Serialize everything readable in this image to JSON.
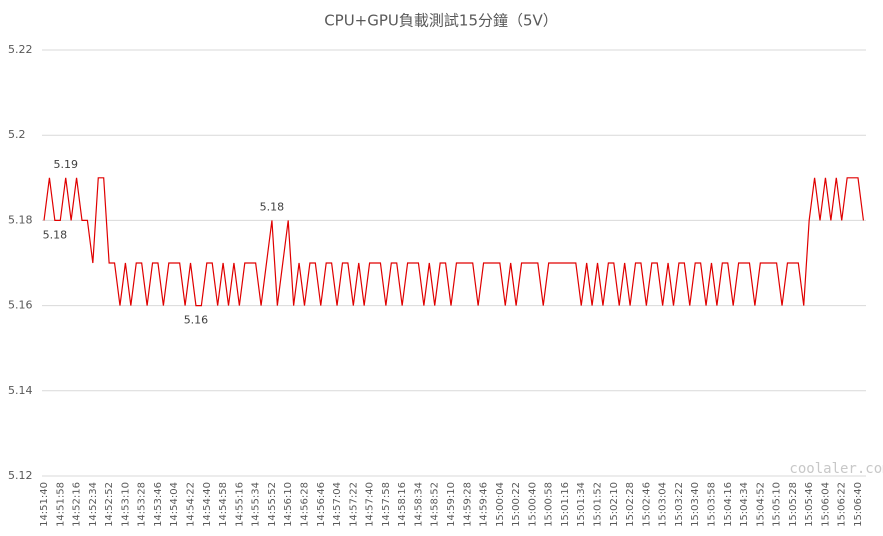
{
  "chart_data": {
    "type": "line",
    "title": "CPU+GPU負載測試15分鐘（5V）",
    "watermark": "coolaler.com",
    "color": "#e00000",
    "grid": true,
    "ylim": [
      5.12,
      5.22
    ],
    "yticks": [
      5.12,
      5.14,
      5.16,
      5.18,
      5.2,
      5.22
    ],
    "categories": [
      "14:51:40",
      null,
      null,
      "14:51:58",
      null,
      null,
      "14:52:16",
      null,
      null,
      "14:52:34",
      null,
      null,
      "14:52:52",
      null,
      null,
      "14:53:10",
      null,
      null,
      "14:53:28",
      null,
      null,
      "14:53:46",
      null,
      null,
      "14:54:04",
      null,
      null,
      "14:54:22",
      null,
      null,
      "14:54:40",
      null,
      null,
      "14:54:58",
      null,
      null,
      "14:55:16",
      null,
      null,
      "14:55:34",
      null,
      null,
      "14:55:52",
      null,
      null,
      "14:56:10",
      null,
      null,
      "14:56:28",
      null,
      null,
      "14:56:46",
      null,
      null,
      "14:57:04",
      null,
      null,
      "14:57:22",
      null,
      null,
      "14:57:40",
      null,
      null,
      "14:57:58",
      null,
      null,
      "14:58:16",
      null,
      null,
      "14:58:34",
      null,
      null,
      "14:58:52",
      null,
      null,
      "14:59:10",
      null,
      null,
      "14:59:28",
      null,
      null,
      "14:59:46",
      null,
      null,
      "15:00:04",
      null,
      null,
      "15:00:22",
      null,
      null,
      "15:00:40",
      null,
      null,
      "15:00:58",
      null,
      null,
      "15:01:16",
      null,
      null,
      "15:01:34",
      null,
      null,
      "15:01:52",
      null,
      null,
      "15:02:10",
      null,
      null,
      "15:02:28",
      null,
      null,
      "15:02:46",
      null,
      null,
      "15:03:04",
      null,
      null,
      "15:03:22",
      null,
      null,
      "15:03:40",
      null,
      null,
      "15:03:58",
      null,
      null,
      "15:04:16",
      null,
      null,
      "15:04:34",
      null,
      null,
      "15:04:52",
      null,
      null,
      "15:05:10",
      null,
      null,
      "15:05:28",
      null,
      null,
      "15:05:46",
      null,
      null,
      "15:06:04",
      null,
      null,
      "15:06:22",
      null,
      null,
      "15:06:40",
      null
    ],
    "values": [
      5.18,
      5.19,
      5.18,
      5.18,
      5.19,
      5.18,
      5.19,
      5.18,
      5.18,
      5.17,
      5.19,
      5.19,
      5.17,
      5.17,
      5.16,
      5.17,
      5.16,
      5.17,
      5.17,
      5.16,
      5.17,
      5.17,
      5.16,
      5.17,
      5.17,
      5.17,
      5.16,
      5.17,
      5.16,
      5.16,
      5.17,
      5.17,
      5.16,
      5.17,
      5.16,
      5.17,
      5.16,
      5.17,
      5.17,
      5.17,
      5.16,
      5.17,
      5.18,
      5.16,
      5.17,
      5.18,
      5.16,
      5.17,
      5.16,
      5.17,
      5.17,
      5.16,
      5.17,
      5.17,
      5.16,
      5.17,
      5.17,
      5.16,
      5.17,
      5.16,
      5.17,
      5.17,
      5.17,
      5.16,
      5.17,
      5.17,
      5.16,
      5.17,
      5.17,
      5.17,
      5.16,
      5.17,
      5.16,
      5.17,
      5.17,
      5.16,
      5.17,
      5.17,
      5.17,
      5.17,
      5.16,
      5.17,
      5.17,
      5.17,
      5.17,
      5.16,
      5.17,
      5.16,
      5.17,
      5.17,
      5.17,
      5.17,
      5.16,
      5.17,
      5.17,
      5.17,
      5.17,
      5.17,
      5.17,
      5.16,
      5.17,
      5.16,
      5.17,
      5.16,
      5.17,
      5.17,
      5.16,
      5.17,
      5.16,
      5.17,
      5.17,
      5.16,
      5.17,
      5.17,
      5.16,
      5.17,
      5.16,
      5.17,
      5.17,
      5.16,
      5.17,
      5.17,
      5.16,
      5.17,
      5.16,
      5.17,
      5.17,
      5.16,
      5.17,
      5.17,
      5.17,
      5.16,
      5.17,
      5.17,
      5.17,
      5.17,
      5.16,
      5.17,
      5.17,
      5.17,
      5.16,
      5.18,
      5.19,
      5.18,
      5.19,
      5.18,
      5.19,
      5.18,
      5.19,
      5.19,
      5.19,
      5.18
    ],
    "value_labels": [
      null,
      null,
      "5.18",
      null,
      "5.19",
      null,
      null,
      null,
      null,
      null,
      null,
      null,
      null,
      null,
      null,
      null,
      null,
      null,
      null,
      null,
      null,
      null,
      null,
      null,
      null,
      null,
      null,
      null,
      "5.16",
      null,
      null,
      null,
      null,
      null,
      null,
      null,
      null,
      null,
      null,
      null,
      null,
      null,
      "5.18",
      null,
      null,
      null,
      null,
      null,
      null,
      null,
      null,
      null,
      null,
      null,
      null,
      null,
      null,
      null,
      null,
      null,
      null,
      null,
      null,
      null,
      null,
      null,
      null,
      null,
      null,
      null,
      null,
      null,
      null,
      null,
      null,
      null,
      null,
      null,
      null,
      null,
      null,
      null,
      null,
      null,
      null,
      null,
      null,
      null,
      null,
      null,
      null,
      null,
      null,
      null,
      null,
      null,
      null,
      null,
      null,
      null,
      null,
      null,
      null,
      null,
      null,
      null,
      null,
      null,
      null,
      null,
      null,
      null,
      null,
      null,
      null,
      null,
      null,
      null,
      null,
      null,
      null,
      null,
      null,
      null,
      null,
      null,
      null,
      null,
      null,
      null,
      null,
      null,
      null,
      null,
      null,
      null,
      null,
      null,
      null,
      null,
      null,
      null,
      null,
      null,
      null,
      null,
      null,
      null,
      null,
      null,
      null,
      null
    ]
  }
}
